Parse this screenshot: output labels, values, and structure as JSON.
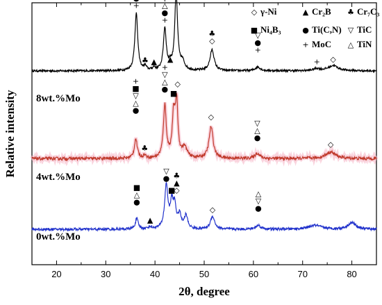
{
  "chart_data": {
    "type": "line",
    "xlabel": "2θ, degree",
    "ylabel": "Relative intensity",
    "xlim": [
      15,
      85
    ],
    "xticks": [
      20,
      30,
      40,
      50,
      60,
      70,
      80
    ],
    "grid": false,
    "legend_position": "top-right",
    "series": [
      {
        "name": "8wt.%Mo",
        "color": "#000000",
        "baseline": 0.74,
        "noise": 0.004,
        "peaks": [
          {
            "x": 36.2,
            "h": 0.22,
            "w": 0.35
          },
          {
            "x": 38.0,
            "h": 0.015,
            "w": 0.3
          },
          {
            "x": 39.8,
            "h": 0.01,
            "w": 0.3
          },
          {
            "x": 42.0,
            "h": 0.16,
            "w": 0.35
          },
          {
            "x": 43.1,
            "h": 0.02,
            "w": 0.3
          },
          {
            "x": 44.3,
            "h": 0.29,
            "w": 0.35
          },
          {
            "x": 45.6,
            "h": 0.03,
            "w": 0.5
          },
          {
            "x": 51.6,
            "h": 0.08,
            "w": 0.5
          },
          {
            "x": 60.9,
            "h": 0.015,
            "w": 0.6
          },
          {
            "x": 72.9,
            "h": 0.008,
            "w": 0.8
          },
          {
            "x": 76.2,
            "h": 0.02,
            "w": 1.2
          }
        ]
      },
      {
        "name": "4wt.%Mo",
        "color": "#c0392b",
        "baseline": 0.405,
        "noise": 0.006,
        "peaks": [
          {
            "x": 36.1,
            "h": 0.075,
            "w": 0.35
          },
          {
            "x": 37.9,
            "h": 0.012,
            "w": 0.3
          },
          {
            "x": 42.0,
            "h": 0.2,
            "w": 0.35
          },
          {
            "x": 43.8,
            "h": 0.16,
            "w": 0.35
          },
          {
            "x": 44.4,
            "h": 0.2,
            "w": 0.3
          },
          {
            "x": 46.0,
            "h": 0.04,
            "w": 0.6
          },
          {
            "x": 51.4,
            "h": 0.12,
            "w": 0.5
          },
          {
            "x": 60.8,
            "h": 0.02,
            "w": 0.6
          },
          {
            "x": 75.7,
            "h": 0.025,
            "w": 1.2
          }
        ]
      },
      {
        "name": "0wt.%Mo",
        "color": "#2233cc",
        "baseline": 0.135,
        "noise": 0.005,
        "peaks": [
          {
            "x": 36.3,
            "h": 0.04,
            "w": 0.35
          },
          {
            "x": 39.0,
            "h": 0.008,
            "w": 0.4
          },
          {
            "x": 42.3,
            "h": 0.165,
            "w": 0.4
          },
          {
            "x": 43.4,
            "h": 0.09,
            "w": 0.35
          },
          {
            "x": 44.0,
            "h": 0.08,
            "w": 0.35
          },
          {
            "x": 45.0,
            "h": 0.05,
            "w": 0.4
          },
          {
            "x": 46.3,
            "h": 0.05,
            "w": 0.4
          },
          {
            "x": 51.7,
            "h": 0.05,
            "w": 0.5
          },
          {
            "x": 61.0,
            "h": 0.015,
            "w": 0.6
          },
          {
            "x": 72.5,
            "h": 0.015,
            "w": 1.5
          },
          {
            "x": 80.0,
            "h": 0.025,
            "w": 1.0
          }
        ]
      }
    ],
    "legend": [
      {
        "symbol": "◇",
        "label": "γ-Ni"
      },
      {
        "symbol": "▲",
        "label": "Cr₂B"
      },
      {
        "symbol": "♣",
        "label": "Cr₇C₃"
      },
      {
        "symbol": "■",
        "label": "Ni₄B₃"
      },
      {
        "symbol": "●",
        "label": "Ti(C,N)"
      },
      {
        "symbol": "▽",
        "label": "TiC"
      },
      {
        "symbol": "+",
        "label": "MoC"
      },
      {
        "symbol": "△",
        "label": "TiN"
      }
    ],
    "markers": [
      {
        "x": 36.2,
        "y": 0.98,
        "stack": [
          "▽",
          "△",
          "●",
          "+"
        ]
      },
      {
        "x": 38.0,
        "y": 0.77,
        "stack": [
          "♣"
        ]
      },
      {
        "x": 39.8,
        "y": 0.765,
        "stack": [
          "▲"
        ]
      },
      {
        "x": 42.0,
        "y": 0.925,
        "stack": [
          "▽",
          "△",
          "●",
          "+"
        ]
      },
      {
        "x": 43.1,
        "y": 0.775,
        "stack": [
          "▲"
        ]
      },
      {
        "x": 44.3,
        "y": 1.07,
        "stack": [
          "♣",
          "◇"
        ]
      },
      {
        "x": 51.6,
        "y": 0.845,
        "stack": [
          "♣",
          "◇"
        ]
      },
      {
        "x": 60.9,
        "y": 0.81,
        "stack": [
          "▽",
          "●",
          "+"
        ]
      },
      {
        "x": 72.9,
        "y": 0.765,
        "stack": [
          "+"
        ]
      },
      {
        "x": 76.2,
        "y": 0.775,
        "stack": [
          "◇"
        ]
      },
      {
        "x": 36.1,
        "y": 0.58,
        "stack": [
          "+",
          "■",
          "▽",
          "△",
          "●"
        ]
      },
      {
        "x": 37.9,
        "y": 0.435,
        "stack": [
          "♣"
        ]
      },
      {
        "x": 42.0,
        "y": 0.66,
        "stack": [
          "+",
          "▽",
          "△",
          "●"
        ]
      },
      {
        "x": 43.8,
        "y": 0.645,
        "stack": [
          "■"
        ]
      },
      {
        "x": 44.6,
        "y": 0.68,
        "stack": [
          "◇"
        ]
      },
      {
        "x": 51.4,
        "y": 0.555,
        "stack": [
          "◇"
        ]
      },
      {
        "x": 60.8,
        "y": 0.475,
        "stack": [
          "▽",
          "△",
          "●"
        ]
      },
      {
        "x": 75.7,
        "y": 0.45,
        "stack": [
          "◇"
        ]
      },
      {
        "x": 36.3,
        "y": 0.23,
        "stack": [
          "■",
          "△",
          "●"
        ]
      },
      {
        "x": 39.0,
        "y": 0.16,
        "stack": [
          "▲"
        ]
      },
      {
        "x": 42.3,
        "y": 0.32,
        "stack": [
          "▽",
          "●"
        ]
      },
      {
        "x": 43.4,
        "y": 0.275,
        "stack": [
          "■"
        ]
      },
      {
        "x": 44.4,
        "y": 0.275,
        "stack": [
          "♣",
          "▲",
          "◇"
        ]
      },
      {
        "x": 51.7,
        "y": 0.2,
        "stack": [
          "◇"
        ]
      },
      {
        "x": 61.0,
        "y": 0.205,
        "stack": [
          "△",
          "▽",
          "●"
        ]
      }
    ]
  }
}
